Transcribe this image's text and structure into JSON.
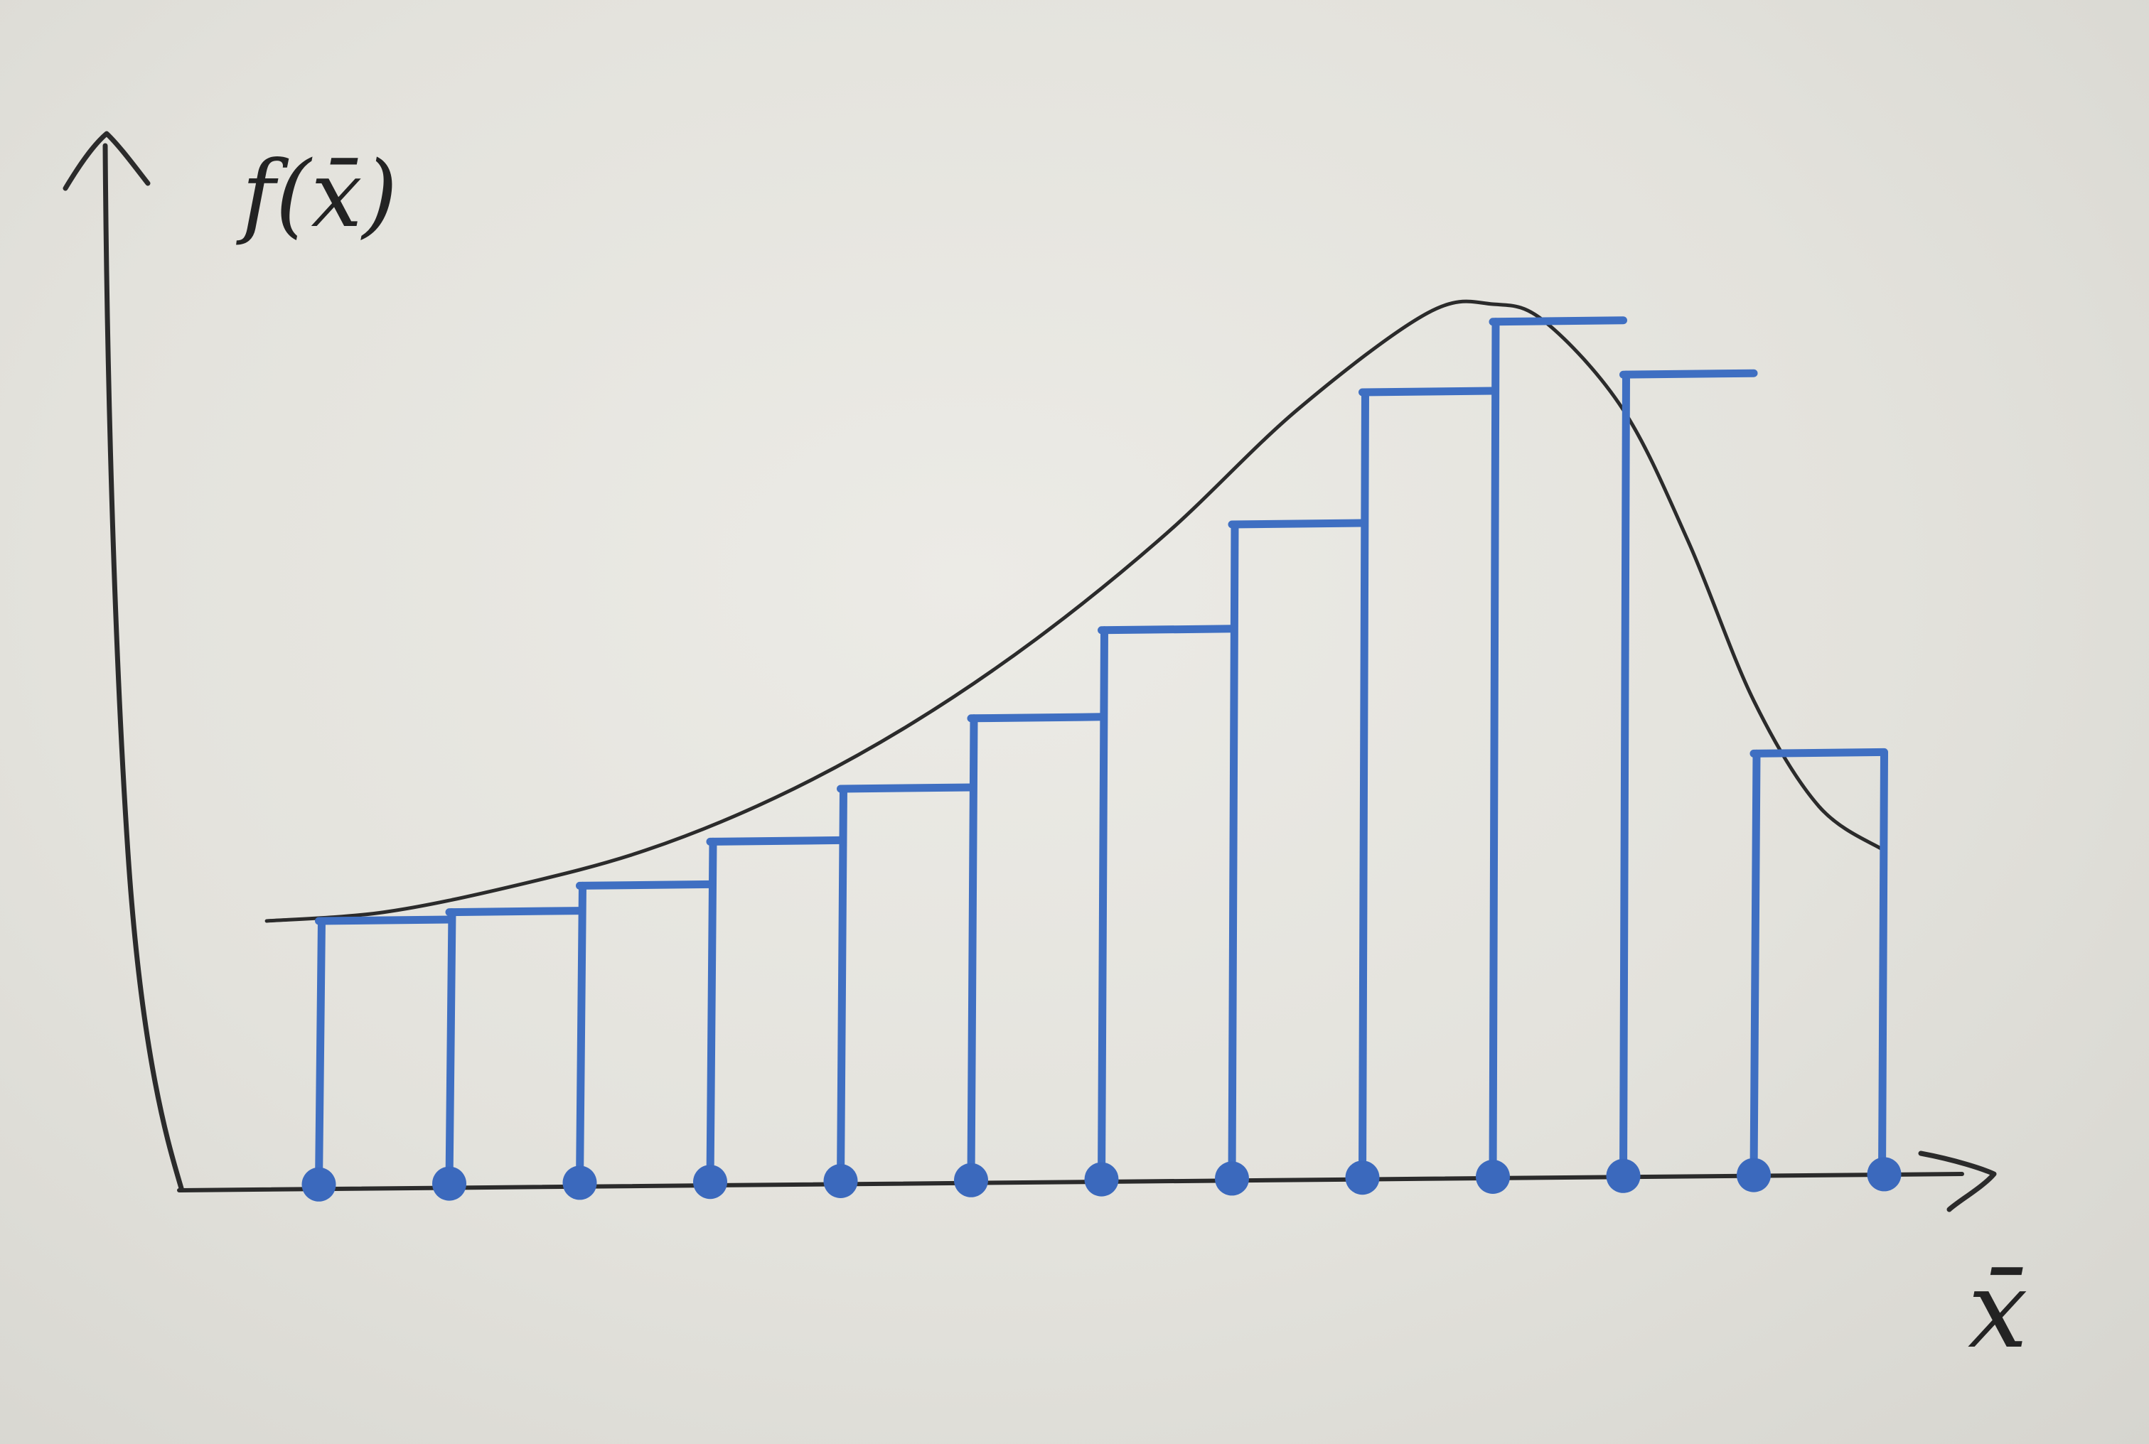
{
  "labels": {
    "y_axis": "f(x̄)",
    "x_axis": "x̄"
  },
  "colors": {
    "board": "#e8e7e1",
    "curve": "#2b2b2b",
    "bars": "#3f6fc2"
  },
  "chart_data": {
    "type": "bar",
    "description_kind": "step-function approximation of a smooth curve",
    "xlabel": "x̄",
    "ylabel": "f(x̄)",
    "xlim": [
      0,
      14
    ],
    "ylim": [
      0,
      1
    ],
    "grid": false,
    "bars": [
      {
        "x": 1,
        "height": 0.3
      },
      {
        "x": 2,
        "height": 0.31
      },
      {
        "x": 3,
        "height": 0.34
      },
      {
        "x": 4,
        "height": 0.39
      },
      {
        "x": 5,
        "height": 0.45
      },
      {
        "x": 6,
        "height": 0.53
      },
      {
        "x": 7,
        "height": 0.63
      },
      {
        "x": 8,
        "height": 0.75
      },
      {
        "x": 9,
        "height": 0.9
      },
      {
        "x": 10,
        "height": 0.98
      },
      {
        "x": 11,
        "height": 0.92
      },
      {
        "x": 12,
        "height": 0.49
      }
    ],
    "bar_end_x": 13,
    "sample_points_x": [
      1,
      2,
      3,
      4,
      5,
      6,
      7,
      8,
      9,
      10,
      11,
      12,
      13
    ],
    "curve": {
      "x": [
        0.6,
        1.5,
        2.5,
        3.5,
        4.5,
        5.5,
        6.5,
        7.5,
        8.5,
        9.5,
        10.0,
        10.4,
        11.0,
        11.5,
        12.0,
        12.5,
        13.0
      ],
      "y": [
        0.3,
        0.31,
        0.34,
        0.38,
        0.44,
        0.52,
        0.62,
        0.74,
        0.88,
        0.99,
        1.0,
        0.98,
        0.88,
        0.73,
        0.55,
        0.43,
        0.38
      ]
    }
  }
}
